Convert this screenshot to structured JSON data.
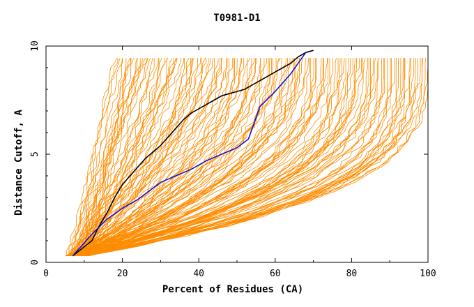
{
  "chart_data": {
    "type": "line",
    "title": "T0981-D1",
    "xlabel": "Percent of Residues (CA)",
    "ylabel": "Distance Cutoff, A",
    "xlim": [
      0,
      100
    ],
    "ylim": [
      0,
      10
    ],
    "x_ticks": [
      "0",
      "20",
      "40",
      "60",
      "80",
      "100"
    ],
    "y_ticks": [
      "0",
      "5",
      "10"
    ],
    "grid": false,
    "legend": "none",
    "colors": {
      "background_series": "#ff8c00",
      "highlight_black": "#000000",
      "highlight_blue": "#1010d0",
      "axis": "#000000"
    },
    "background_series_note": "roughly 150 orange GDT curves spanning the plot",
    "series": [
      {
        "color": "#000000",
        "x": [
          7,
          12,
          14,
          16,
          18,
          20,
          22,
          24,
          26,
          28,
          30,
          32,
          34,
          36,
          38,
          40,
          42,
          44,
          46,
          48,
          50,
          52,
          54,
          56,
          58,
          60,
          62,
          64,
          66,
          68,
          70
        ],
        "y": [
          0.3,
          1.0,
          1.7,
          2.3,
          3.0,
          3.6,
          4.0,
          4.4,
          4.8,
          5.1,
          5.4,
          5.8,
          6.2,
          6.6,
          6.9,
          7.1,
          7.3,
          7.5,
          7.7,
          7.8,
          7.9,
          8.0,
          8.2,
          8.4,
          8.6,
          8.8,
          9.0,
          9.2,
          9.5,
          9.7,
          9.8
        ]
      },
      {
        "color": "#1010d0",
        "x": [
          7,
          12,
          16,
          20,
          24,
          27,
          30,
          34,
          38,
          42,
          46,
          50,
          53,
          56,
          60,
          64,
          68
        ],
        "y": [
          0.3,
          1.3,
          2.0,
          2.5,
          2.9,
          3.3,
          3.7,
          4.0,
          4.3,
          4.7,
          5.0,
          5.3,
          5.7,
          7.2,
          7.9,
          8.7,
          9.7
        ]
      }
    ]
  }
}
